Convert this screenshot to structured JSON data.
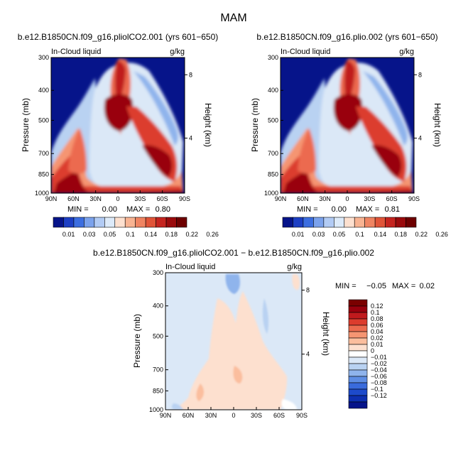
{
  "page_title": "MAM",
  "colors": {
    "pos": [
      "#fde0cf",
      "#fbbe9e",
      "#f59572",
      "#ec6b4f",
      "#dc3c2d",
      "#c01a1d",
      "#99000d",
      "#7a0000"
    ],
    "neg": [
      "#dbe8f7",
      "#b9d2f2",
      "#8fb4ec",
      "#5f8ee4",
      "#3a6bdc",
      "#1d4acb",
      "#0d2fb0",
      "#06148a"
    ],
    "abs": [
      "#06148a",
      "#1d3fc4",
      "#3c6ee0",
      "#7ba2ec",
      "#b2cbf4",
      "#ddeaf9",
      "#fde0cf",
      "#f8b392",
      "#ef8462",
      "#e05438",
      "#c5241f",
      "#9a0a0c",
      "#6e0000"
    ]
  },
  "chart_data": [
    {
      "type": "heatmap",
      "id": "exp1",
      "title": "b.e12.B1850CN.f09_g16.pliolCO2.001 (yrs 601−650)",
      "left_label": "In-Cloud liquid",
      "right_label": "g/kg",
      "ylabel": "Pressure (mb)",
      "y2label": "Height (km)",
      "x_ticks": [
        "90N",
        "60N",
        "30N",
        "0",
        "30S",
        "60S",
        "90S"
      ],
      "y_ticks": [
        "300",
        "400",
        "500",
        "700",
        "850",
        "1000"
      ],
      "y2_ticks": [
        "8",
        "4"
      ],
      "ylim": [
        1000,
        300
      ],
      "min_label": "MIN =",
      "min_value": "0.00",
      "max_label": "MAX =",
      "max_value": "0.80",
      "legend_ticks": [
        "0.01",
        "0.03",
        "0.05",
        "0.1",
        "0.14",
        "0.18",
        "0.22",
        "0.26"
      ]
    },
    {
      "type": "heatmap",
      "id": "exp2",
      "title": "b.e12.B1850CN.f09_g16.plio.002 (yrs 601−650)",
      "left_label": "In-Cloud liquid",
      "right_label": "g/kg",
      "ylabel": "Pressure (mb)",
      "y2label": "Height (km)",
      "x_ticks": [
        "90N",
        "60N",
        "30N",
        "0",
        "30S",
        "60S",
        "90S"
      ],
      "y_ticks": [
        "300",
        "400",
        "500",
        "700",
        "850",
        "1000"
      ],
      "y2_ticks": [
        "8",
        "4"
      ],
      "ylim": [
        1000,
        300
      ],
      "min_label": "MIN =",
      "min_value": "0.00",
      "max_label": "MAX =",
      "max_value": "0.81",
      "legend_ticks": [
        "0.01",
        "0.03",
        "0.05",
        "0.1",
        "0.14",
        "0.18",
        "0.22",
        "0.26"
      ]
    },
    {
      "type": "heatmap",
      "id": "diff",
      "title": "b.e12.B1850CN.f09_g16.pliolCO2.001 − b.e12.B1850CN.f09_g16.plio.002",
      "left_label": "In-Cloud liquid",
      "right_label": "g/kg",
      "ylabel": "Pressure (mb)",
      "y2label": "Height (km)",
      "x_ticks": [
        "90N",
        "60N",
        "30N",
        "0",
        "30S",
        "60S",
        "90S"
      ],
      "y_ticks": [
        "300",
        "400",
        "500",
        "700",
        "850",
        "1000"
      ],
      "y2_ticks": [
        "8",
        "4"
      ],
      "ylim": [
        1000,
        300
      ],
      "min_label": "MIN =",
      "min_value": "−0.05",
      "max_label": "MAX =",
      "max_value": "0.02",
      "legend_ticks": [
        "0.12",
        "0.1",
        "0.08",
        "0.06",
        "0.04",
        "0.02",
        "0.01",
        "0",
        "−0.01",
        "−0.02",
        "−0.04",
        "−0.06",
        "−0.08",
        "−0.1",
        "−0.12"
      ]
    }
  ]
}
